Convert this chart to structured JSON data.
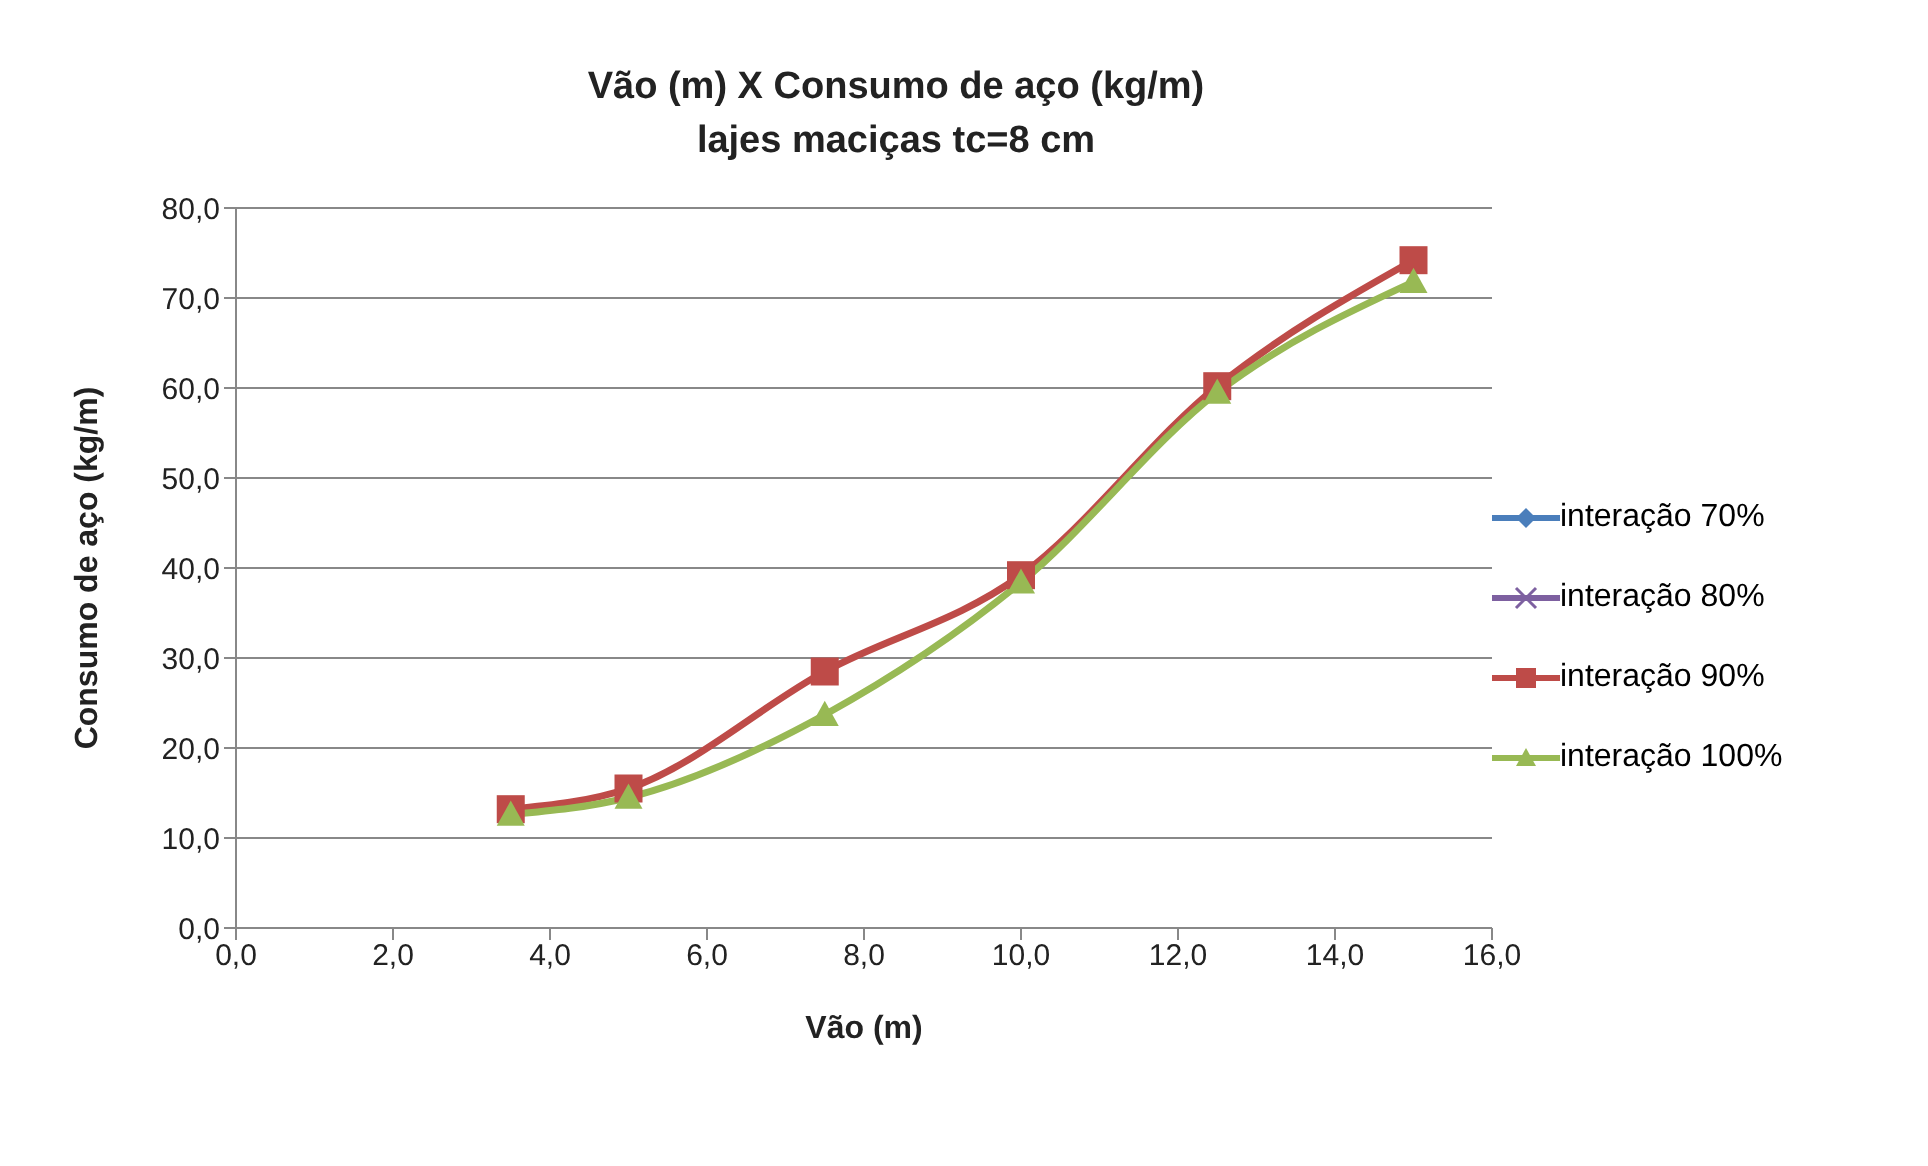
{
  "chart_data": {
    "type": "line",
    "title": "Vão (m) X Consumo de aço (kg/m)",
    "subtitle": "lajes maciças tc=8 cm",
    "xlabel": "Vão (m)",
    "ylabel": "Consumo de aço (kg/m)",
    "x": [
      3.5,
      5,
      7.5,
      10,
      12.5,
      15
    ],
    "series": [
      {
        "name": "interação 70%",
        "color": "#4a7ebb",
        "marker": "diamond",
        "values": [
          null,
          null,
          null,
          null,
          null,
          null
        ]
      },
      {
        "name": "interação 80%",
        "color": "#7d60a0",
        "marker": "cross",
        "values": [
          null,
          null,
          null,
          null,
          null,
          null
        ]
      },
      {
        "name": "interação 90%",
        "color": "#be4b48",
        "marker": "square",
        "values": [
          13.2,
          15.5,
          28.5,
          39.2,
          60.2,
          74.2
        ]
      },
      {
        "name": "interação 100%",
        "color": "#98b954",
        "marker": "triangle",
        "values": [
          12.6,
          14.5,
          23.7,
          38.4,
          59.5,
          71.8
        ]
      }
    ],
    "xlim": [
      0,
      16
    ],
    "xticks": [
      {
        "value": 0,
        "label": "0,0"
      },
      {
        "value": 2,
        "label": "2,0"
      },
      {
        "value": 4,
        "label": "4,0"
      },
      {
        "value": 6,
        "label": "6,0"
      },
      {
        "value": 8,
        "label": "8,0"
      },
      {
        "value": 10,
        "label": "10,0"
      },
      {
        "value": 12,
        "label": "12,0"
      },
      {
        "value": 14,
        "label": "14,0"
      },
      {
        "value": 16,
        "label": "16,0"
      }
    ],
    "ylim": [
      0,
      80
    ],
    "yticks": [
      {
        "value": 0,
        "label": "0,0"
      },
      {
        "value": 10,
        "label": "10,0"
      },
      {
        "value": 20,
        "label": "20,0"
      },
      {
        "value": 30,
        "label": "30,0"
      },
      {
        "value": 40,
        "label": "40,0"
      },
      {
        "value": 50,
        "label": "50,0"
      },
      {
        "value": 60,
        "label": "60,0"
      },
      {
        "value": 70,
        "label": "70,0"
      },
      {
        "value": 80,
        "label": "80,0"
      }
    ],
    "grid": "y",
    "legend": "right",
    "line_style": "solid"
  }
}
